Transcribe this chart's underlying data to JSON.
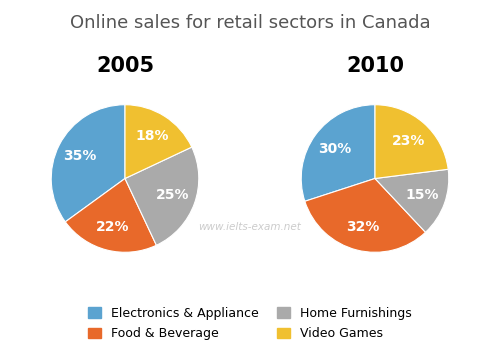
{
  "title": "Online sales for retail sectors in Canada",
  "title_fontsize": 13,
  "title_color": "#555555",
  "subtitle_2005": "2005",
  "subtitle_2010": "2010",
  "subtitle_fontsize": 15,
  "labels": [
    "Electronics & Appliance",
    "Food & Beverage",
    "Home Furnishings",
    "Video Games"
  ],
  "values_2005": [
    35,
    22,
    25,
    18
  ],
  "values_2010": [
    30,
    32,
    15,
    23
  ],
  "colors": [
    "#5BA3D0",
    "#E8692A",
    "#AAAAAA",
    "#F0C030"
  ],
  "pct_fontsize": 10,
  "legend_fontsize": 9,
  "watermark": "www.ielts-exam.net",
  "watermark_color": "#cccccc",
  "background_color": "#ffffff",
  "startangle_2005": 90,
  "startangle_2010": 90
}
